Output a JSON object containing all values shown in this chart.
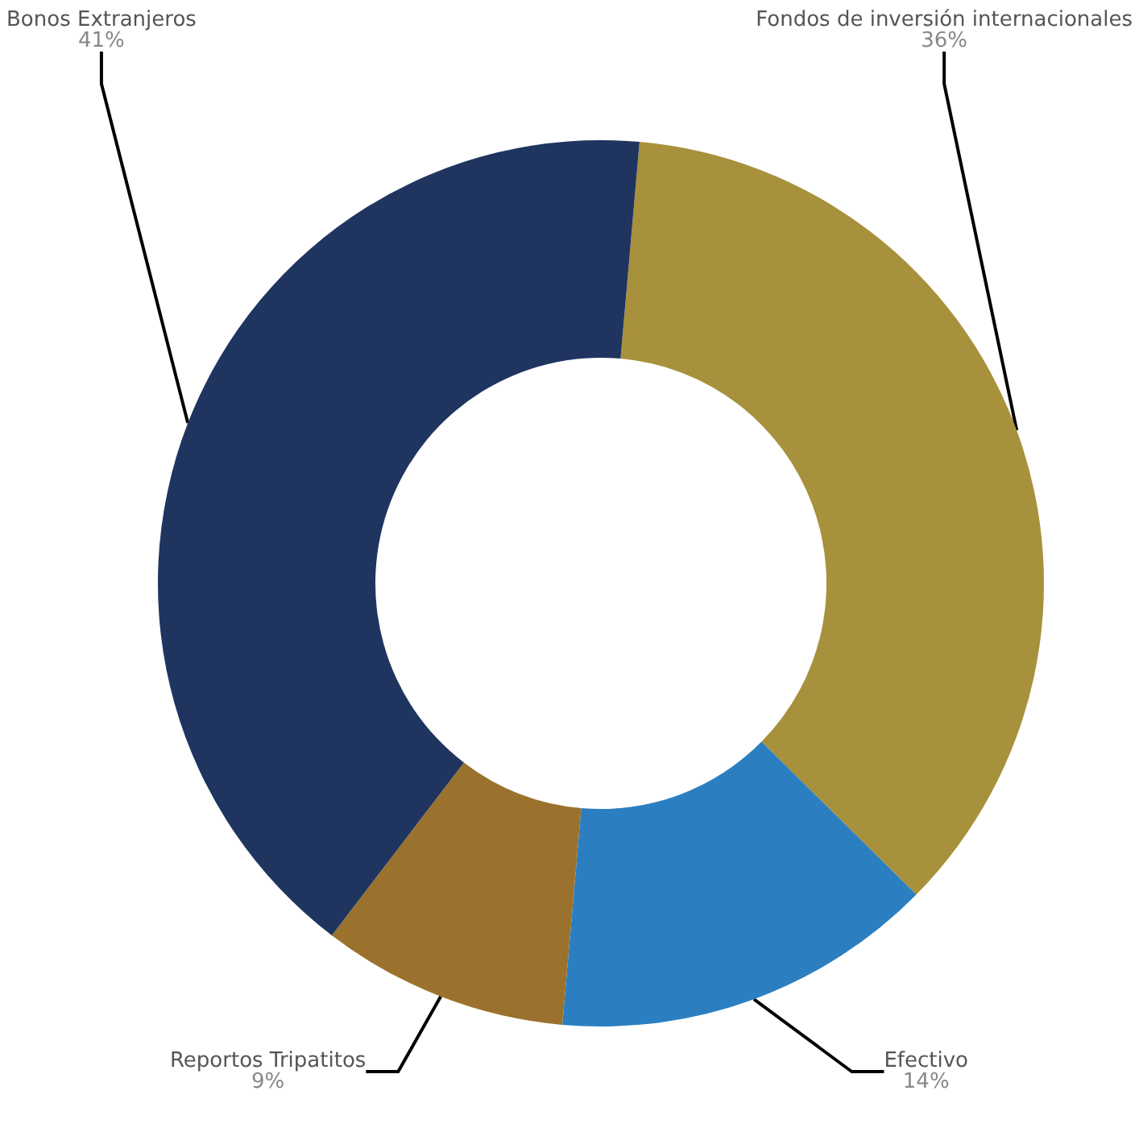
{
  "chart_data": {
    "type": "donut",
    "categories": [
      "Fondos de inversión internacionales",
      "Efectivo",
      "Reportos Tripatitos",
      "Bonos Extranjeros"
    ],
    "values": [
      36,
      14,
      9,
      41
    ],
    "value_labels": [
      "36%",
      "14%",
      "9%",
      "41%"
    ],
    "colors": [
      "#a8913c",
      "#2b7fc1",
      "#9b722d",
      "#1f3560"
    ]
  }
}
